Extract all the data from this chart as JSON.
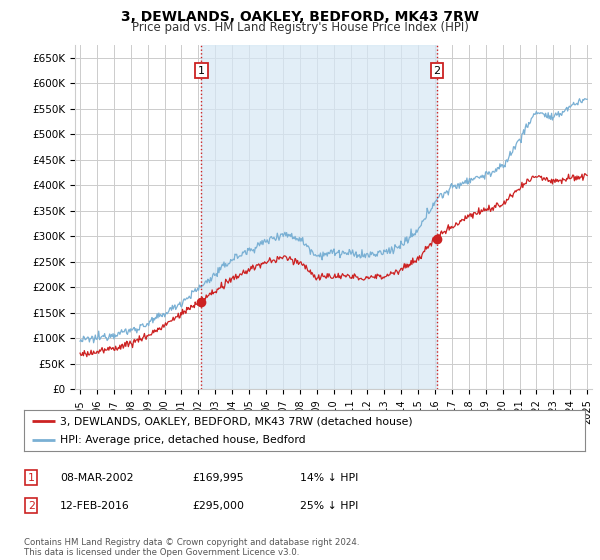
{
  "title": "3, DEWLANDS, OAKLEY, BEDFORD, MK43 7RW",
  "subtitle": "Price paid vs. HM Land Registry's House Price Index (HPI)",
  "ylabel_ticks": [
    "£0",
    "£50K",
    "£100K",
    "£150K",
    "£200K",
    "£250K",
    "£300K",
    "£350K",
    "£400K",
    "£450K",
    "£500K",
    "£550K",
    "£600K",
    "£650K"
  ],
  "ytick_values": [
    0,
    50000,
    100000,
    150000,
    200000,
    250000,
    300000,
    350000,
    400000,
    450000,
    500000,
    550000,
    600000,
    650000
  ],
  "ylim": [
    0,
    675000
  ],
  "xlim_start": 1994.7,
  "xlim_end": 2025.3,
  "hpi_color": "#7ab0d4",
  "hpi_fill_color": "#d6e8f5",
  "price_color": "#cc2222",
  "vline_color": "#cc2222",
  "marker1_year": 2002.18,
  "marker2_year": 2016.12,
  "marker1_price": 169995,
  "marker2_price": 295000,
  "sale1_label": "1",
  "sale2_label": "2",
  "legend_line1": "3, DEWLANDS, OAKLEY, BEDFORD, MK43 7RW (detached house)",
  "legend_line2": "HPI: Average price, detached house, Bedford",
  "table_row1": [
    "1",
    "08-MAR-2002",
    "£169,995",
    "14% ↓ HPI"
  ],
  "table_row2": [
    "2",
    "12-FEB-2016",
    "£295,000",
    "25% ↓ HPI"
  ],
  "footer": "Contains HM Land Registry data © Crown copyright and database right 2024.\nThis data is licensed under the Open Government Licence v3.0.",
  "bg_color": "#ffffff",
  "grid_color": "#cccccc",
  "annotation_box_color": "#cc2222",
  "hpi_knots": [
    1995,
    1996,
    1997,
    1998,
    1999,
    2000,
    2001,
    2002,
    2003,
    2004,
    2005,
    2006,
    2007,
    2008,
    2009,
    2010,
    2011,
    2012,
    2013,
    2014,
    2015,
    2016,
    2017,
    2018,
    2019,
    2020,
    2021,
    2022,
    2023,
    2024,
    2025
  ],
  "hpi_vals": [
    95000,
    100000,
    108000,
    115000,
    128000,
    148000,
    170000,
    197000,
    225000,
    255000,
    272000,
    290000,
    305000,
    295000,
    262000,
    268000,
    265000,
    262000,
    268000,
    282000,
    310000,
    370000,
    395000,
    410000,
    420000,
    435000,
    490000,
    545000,
    530000,
    555000,
    570000
  ],
  "prop_knots": [
    1995,
    1996,
    1997,
    1998,
    1999,
    2000,
    2001,
    2002,
    2003,
    2004,
    2005,
    2006,
    2007,
    2008,
    2009,
    2010,
    2011,
    2012,
    2013,
    2014,
    2015,
    2016,
    2017,
    2018,
    2019,
    2020,
    2021,
    2022,
    2023,
    2024,
    2025
  ],
  "prop_vals": [
    68000,
    73000,
    80000,
    90000,
    105000,
    125000,
    148000,
    169995,
    192000,
    215000,
    235000,
    248000,
    258000,
    250000,
    218000,
    222000,
    220000,
    218000,
    222000,
    235000,
    255000,
    295000,
    320000,
    340000,
    352000,
    362000,
    393000,
    420000,
    408000,
    415000,
    418000
  ]
}
